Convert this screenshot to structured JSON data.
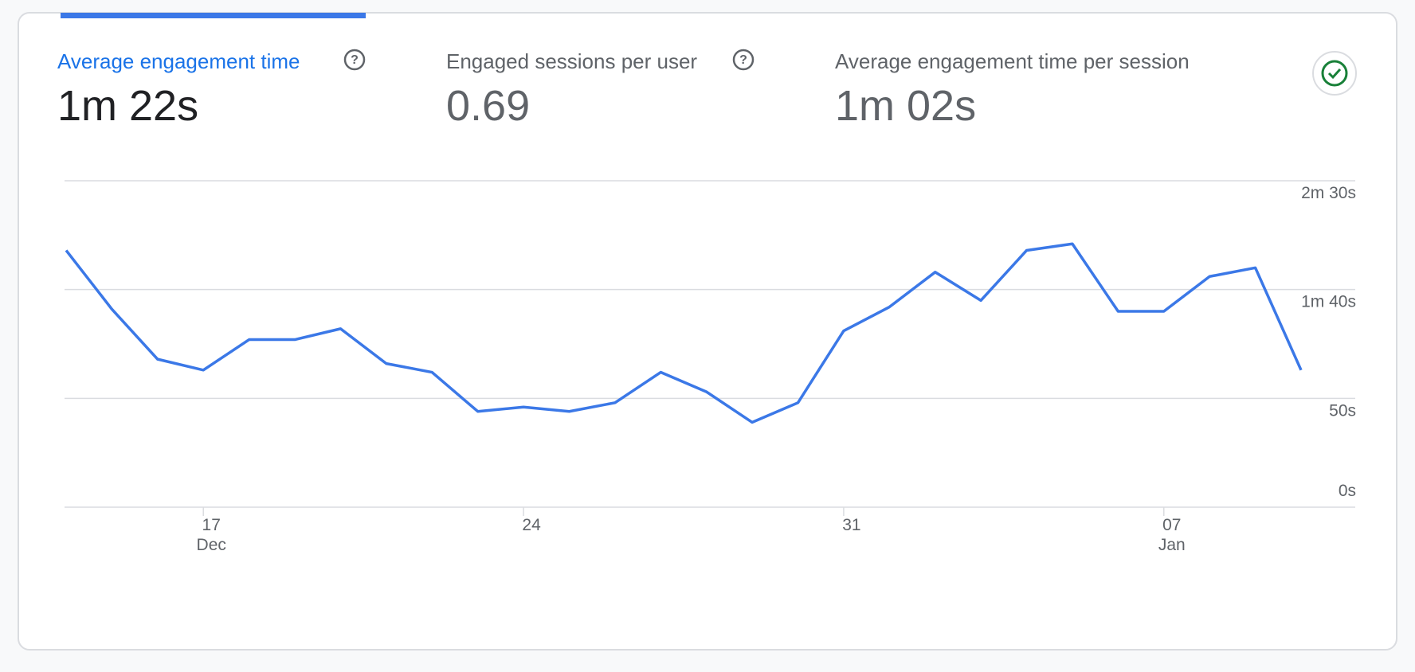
{
  "tabs": [
    {
      "title": "Average engagement time",
      "value": "1m 22s",
      "active": true
    },
    {
      "title": "Engaged sessions per user",
      "value": "0.69",
      "active": false
    },
    {
      "title": "Average engagement time per session",
      "value": "1m 02s",
      "active": false
    }
  ],
  "chart_data": {
    "type": "line",
    "categories": [
      null,
      null,
      null,
      "17",
      null,
      null,
      null,
      null,
      null,
      null,
      "24",
      null,
      null,
      null,
      null,
      null,
      null,
      "31",
      null,
      null,
      null,
      null,
      null,
      null,
      "07",
      null,
      null,
      null
    ],
    "category_sublabels": [
      null,
      null,
      null,
      "Dec",
      null,
      null,
      null,
      null,
      null,
      null,
      null,
      null,
      null,
      null,
      null,
      null,
      null,
      null,
      null,
      null,
      null,
      null,
      null,
      null,
      "Jan",
      null,
      null,
      null
    ],
    "series": [
      {
        "color": "#3b78e7",
        "values": [
          118,
          91,
          68,
          63,
          77,
          77,
          82,
          66,
          62,
          44,
          46,
          44,
          48,
          62,
          53,
          39,
          48,
          81,
          92,
          108,
          95,
          118,
          121,
          90,
          90,
          106,
          110,
          63
        ]
      }
    ],
    "ylim": [
      0,
      150
    ],
    "yticks": [
      {
        "value": 0,
        "label": "0s"
      },
      {
        "value": 50,
        "label": "50s"
      },
      {
        "value": 100,
        "label": "1m 40s"
      },
      {
        "value": 150,
        "label": "2m 30s"
      }
    ],
    "grid": true
  }
}
